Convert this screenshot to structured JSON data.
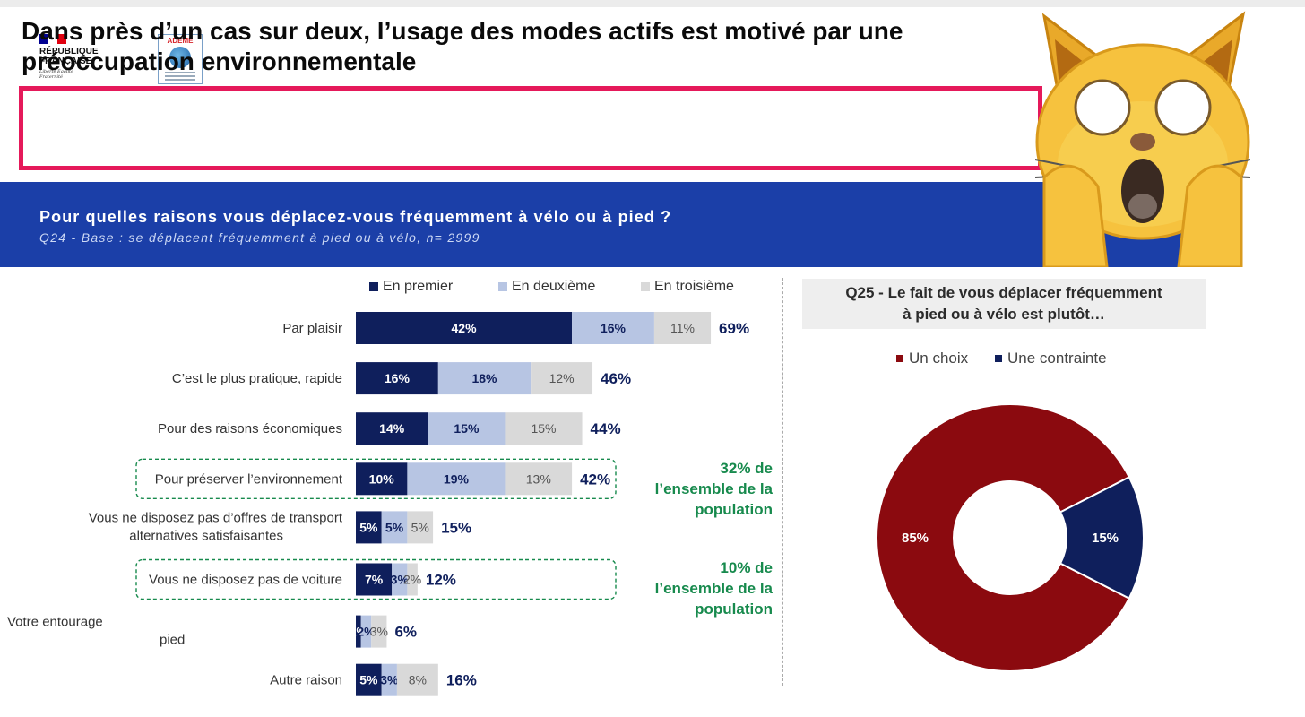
{
  "header": {
    "republique_logo": "RÉPUBLIQUE FRANÇAISE",
    "republique_motto": "Liberté Égalité Fraternité",
    "ademe_logo": "ADEME",
    "title": "Dans près d’un cas sur deux, l’usage des modes actifs est motivé par une préoccupation environnementale"
  },
  "title_lines": [
    "Dans près d’un cas sur deux, l’usage des modes actifs est motivé par une",
    "préoccupation environnementale"
  ],
  "band": {
    "question": "Pour quelles raisons vous déplacez-vous fréquemment à vélo ou à pied ?",
    "base": "Q24 - Base : se déplacent fréquemment à pied ou à vélo, n= 2999"
  },
  "colors": {
    "premier": "#0f1f5c",
    "deuxieme": "#b7c5e3",
    "troisieme": "#d9d9d9",
    "total_text": "#0f1f5c",
    "choix": "#8b0a0f",
    "contrainte": "#0f1f5c",
    "band": "#1b3fa8",
    "title_border": "#e5195a",
    "note_green": "#178a4d"
  },
  "chart_data": [
    {
      "type": "bar",
      "orientation": "horizontal",
      "stacked": true,
      "title": "Pour quelles raisons vous déplacez-vous fréquemment à vélo ou à pied ?",
      "categories": [
        "Par plaisir",
        "C’est le plus pratique, rapide",
        "Pour des raisons économiques",
        "Pour préserver l’environnement",
        "Vous ne disposez pas d’offres de transport alternatives satisfaisantes",
        "Vous ne disposez pas de voiture",
        "Votre entourage ... pied",
        "Autre raison"
      ],
      "category_lines": [
        [
          "Par plaisir"
        ],
        [
          "C’est le plus pratique, rapide"
        ],
        [
          "Pour des raisons économiques"
        ],
        [
          "Pour préserver l’environnement"
        ],
        [
          "Vous ne disposez pas d’offres de transport",
          "alternatives satisfaisantes"
        ],
        [
          "Vous ne disposez pas de voiture"
        ],
        [
          "Votre entourage",
          "pied"
        ],
        [
          "Autre raison"
        ]
      ],
      "series": [
        {
          "name": "En premier",
          "values": [
            42,
            16,
            14,
            10,
            5,
            7,
            1,
            5
          ]
        },
        {
          "name": "En deuxième",
          "values": [
            16,
            18,
            15,
            19,
            5,
            3,
            2,
            3
          ]
        },
        {
          "name": "En troisième",
          "values": [
            11,
            12,
            15,
            13,
            5,
            2,
            3,
            8
          ]
        }
      ],
      "segment_labels": [
        [
          "42%",
          "16%",
          "11%"
        ],
        [
          "16%",
          "18%",
          "12%"
        ],
        [
          "14%",
          "15%",
          "15%"
        ],
        [
          "10%",
          "19%",
          "13%"
        ],
        [
          "5%",
          "5%",
          "5%"
        ],
        [
          "7%",
          "3%",
          "2%"
        ],
        [
          "1%",
          "2%",
          "3%"
        ],
        [
          "5%",
          "3%",
          "8%"
        ]
      ],
      "totals": [
        "69%",
        "46%",
        "44%",
        "42%",
        "15%",
        "12%",
        "6%",
        "16%"
      ],
      "highlighted_rows": [
        3,
        5
      ],
      "annotations": [
        {
          "row": 3,
          "lines": [
            "32% de",
            "l’ensemble de la",
            "population"
          ]
        },
        {
          "row": 5,
          "lines": [
            "10% de",
            "l’ensemble de la",
            "population"
          ]
        }
      ],
      "legend_position": "top"
    },
    {
      "type": "pie",
      "donut": true,
      "title": "Q25 - Le fait de vous déplacer fréquemment à pied ou à vélo est plutôt…",
      "title_lines": [
        "Q25 - Le fait de vous déplacer fréquemment",
        "à pied ou à vélo est plutôt…"
      ],
      "categories": [
        "Un choix",
        "Une contrainte"
      ],
      "values": [
        85,
        15
      ],
      "labels": [
        "85%",
        "15%"
      ],
      "legend_position": "top"
    }
  ],
  "overlay": {
    "emoji_icon": "weary-cat-face-icon"
  }
}
